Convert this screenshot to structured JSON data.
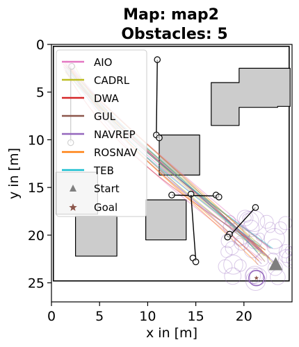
{
  "chart_data": {
    "type": "scatter",
    "title_line1": "Map: map2",
    "title_line2": "Obstacles: 5",
    "xlabel": "x in [m]",
    "ylabel": "y in [m]",
    "xlim": [
      0,
      25
    ],
    "ylim": [
      27,
      0
    ],
    "xticks": [
      0,
      5,
      10,
      15,
      20
    ],
    "yticks": [
      0,
      5,
      10,
      15,
      20,
      25
    ],
    "grid": false,
    "legend_position": "top-left",
    "map_border": {
      "x0": 0.2,
      "y0": 0.2,
      "x1": 24.7,
      "y1": 24.8
    },
    "static_obstacles": [
      {
        "points": [
          [
            16.6,
            4.0
          ],
          [
            19.5,
            4.0
          ],
          [
            19.5,
            2.5
          ],
          [
            24.8,
            2.5
          ],
          [
            24.8,
            6.5
          ],
          [
            23.5,
            6.5
          ],
          [
            23.5,
            6.6
          ],
          [
            19.5,
            6.6
          ],
          [
            19.5,
            8.5
          ],
          [
            16.6,
            8.5
          ]
        ]
      },
      {
        "points": [
          [
            11.2,
            9.5
          ],
          [
            15.4,
            9.5
          ],
          [
            15.4,
            13.7
          ],
          [
            11.2,
            13.7
          ]
        ]
      },
      {
        "points": [
          [
            0.5,
            13.4
          ],
          [
            4.8,
            13.4
          ],
          [
            4.8,
            17.8
          ],
          [
            0.5,
            17.8
          ]
        ]
      },
      {
        "points": [
          [
            2.5,
            18.0
          ],
          [
            6.8,
            18.0
          ],
          [
            6.8,
            22.2
          ],
          [
            2.5,
            22.2
          ]
        ]
      },
      {
        "points": [
          [
            9.8,
            16.3
          ],
          [
            14.0,
            16.3
          ],
          [
            14.0,
            20.5
          ],
          [
            9.8,
            20.5
          ]
        ]
      }
    ],
    "dynamic_obstacles": [
      {
        "from": [
          10.9,
          9.5
        ],
        "to": [
          11.0,
          1.6
        ],
        "markers": [
          [
            11.0,
            1.6
          ],
          [
            10.9,
            9.5
          ],
          [
            11.2,
            9.8
          ]
        ]
      },
      {
        "from": [
          12.5,
          15.8
        ],
        "to": [
          17.3,
          15.9
        ],
        "markers": [
          [
            12.5,
            15.8
          ],
          [
            14.5,
            15.7
          ],
          [
            17.1,
            15.8
          ],
          [
            17.4,
            16.0
          ]
        ]
      },
      {
        "from": [
          14.5,
          15.8
        ],
        "to": [
          15.0,
          22.7
        ],
        "markers": [
          [
            14.7,
            22.4
          ],
          [
            15.0,
            22.8
          ]
        ]
      },
      {
        "from": [
          18.5,
          20.1
        ],
        "to": [
          21.2,
          17.1
        ],
        "markers": [
          [
            18.5,
            19.9
          ],
          [
            18.3,
            20.2
          ],
          [
            21.2,
            17.1
          ]
        ]
      },
      {
        "from": [
          2.0,
          2.3
        ],
        "to": [
          2.0,
          10.3
        ],
        "markers": [
          [
            2.1,
            2.3
          ],
          [
            2.0,
            10.3
          ]
        ]
      }
    ],
    "series": [
      {
        "name": "AIO",
        "color": "#e377c2"
      },
      {
        "name": "CADRL",
        "color": "#bcbd22"
      },
      {
        "name": "DWA",
        "color": "#d62728"
      },
      {
        "name": "GUL",
        "color": "#8c564b"
      },
      {
        "name": "NAVREP",
        "color": "#9467bd"
      },
      {
        "name": "ROSNAV",
        "color": "#ff7f0e"
      },
      {
        "name": "TEB",
        "color": "#17becf"
      }
    ],
    "start_label": "Start",
    "goal_label": "Goal",
    "start": {
      "x": 23.3,
      "y": 23.1,
      "color": "#7f7f7f"
    },
    "goal": {
      "x": 21.3,
      "y": 24.5,
      "color": "#8c564b"
    },
    "goal_circle_color": "#9467bd"
  }
}
